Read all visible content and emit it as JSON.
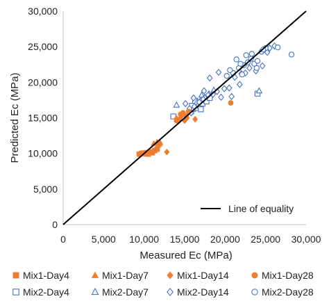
{
  "chart_data": {
    "type": "scatter",
    "xlabel": "Measured Ec (MPa)",
    "ylabel": "Predicted Ec (MPa)",
    "xlim": [
      0,
      30000
    ],
    "ylim": [
      0,
      30000
    ],
    "x_ticks": [
      "0",
      "5,000",
      "10,000",
      "15,000",
      "20,000",
      "25,000",
      "30,000"
    ],
    "y_ticks": [
      "0",
      "5,000",
      "10,000",
      "15,000",
      "20,000",
      "25,000",
      "30,000"
    ],
    "grid": false,
    "legend_position": "bottom",
    "line_label": "Line of equality",
    "colors": {
      "mix1": "#ED7D31",
      "mix2": "#4472C4",
      "line": "#000000"
    },
    "series": [
      {
        "name": "Mix1-Day4",
        "marker": "square-filled",
        "points": [
          [
            9400,
            9900
          ],
          [
            9700,
            10000
          ],
          [
            10000,
            10000
          ],
          [
            10300,
            10100
          ],
          [
            10500,
            9900
          ],
          [
            10800,
            10200
          ],
          [
            11000,
            10100
          ],
          [
            11300,
            10400
          ],
          [
            11600,
            10600
          ],
          [
            10200,
            9950
          ],
          [
            9900,
            10050
          ]
        ]
      },
      {
        "name": "Mix1-Day7",
        "marker": "triangle-filled",
        "points": [
          [
            11200,
            11400
          ],
          [
            11600,
            11600
          ],
          [
            11900,
            11300
          ],
          [
            11700,
            11100
          ],
          [
            12000,
            11500
          ]
        ]
      },
      {
        "name": "Mix1-Day14",
        "marker": "diamond-filled",
        "points": [
          [
            12800,
            10200
          ],
          [
            14000,
            14900
          ],
          [
            14600,
            15200
          ],
          [
            15000,
            14600
          ],
          [
            15300,
            15000
          ],
          [
            16300,
            14800
          ],
          [
            14300,
            14700
          ]
        ]
      },
      {
        "name": "Mix1-Day28",
        "marker": "circle-filled",
        "points": [
          [
            14500,
            15500
          ],
          [
            14800,
            15700
          ],
          [
            15500,
            15900
          ],
          [
            15200,
            15300
          ],
          [
            14000,
            14600
          ],
          [
            20700,
            17100
          ]
        ]
      },
      {
        "name": "Mix2-Day4",
        "marker": "square-open",
        "points": [
          [
            13600,
            15200
          ],
          [
            15800,
            15900
          ],
          [
            16400,
            16400
          ],
          [
            16900,
            16700
          ],
          [
            17200,
            17000
          ],
          [
            17700,
            17300
          ],
          [
            18100,
            17800
          ],
          [
            15900,
            16700
          ],
          [
            16300,
            17400
          ],
          [
            17000,
            16200
          ],
          [
            24000,
            18400
          ]
        ]
      },
      {
        "name": "Mix2-Day7",
        "marker": "triangle-open",
        "points": [
          [
            14000,
            16800
          ],
          [
            16000,
            16200
          ],
          [
            16500,
            17200
          ],
          [
            17000,
            17500
          ],
          [
            17500,
            17900
          ],
          [
            18000,
            18400
          ],
          [
            18600,
            18900
          ],
          [
            24200,
            18800
          ],
          [
            17100,
            18200
          ],
          [
            16700,
            16900
          ]
        ]
      },
      {
        "name": "Mix2-Day14",
        "marker": "diamond-open",
        "points": [
          [
            15100,
            17000
          ],
          [
            15800,
            15700
          ],
          [
            16200,
            16600
          ],
          [
            16800,
            17200
          ],
          [
            17300,
            17600
          ],
          [
            17900,
            18200
          ],
          [
            18500,
            18300
          ],
          [
            19000,
            18700
          ],
          [
            19500,
            17900
          ],
          [
            20500,
            19200
          ],
          [
            21800,
            19700
          ],
          [
            22500,
            21300
          ],
          [
            23000,
            22000
          ],
          [
            23800,
            21600
          ],
          [
            24600,
            22300
          ],
          [
            22000,
            21200
          ],
          [
            21200,
            20700
          ],
          [
            20800,
            18000
          ],
          [
            18100,
            20600
          ],
          [
            19200,
            21400
          ],
          [
            17400,
            18800
          ],
          [
            16100,
            17800
          ],
          [
            15600,
            16300
          ],
          [
            19900,
            19100
          ],
          [
            25200,
            24200
          ],
          [
            26100,
            25100
          ],
          [
            25500,
            24800
          ]
        ]
      },
      {
        "name": "Mix2-Day28",
        "marker": "circle-open",
        "points": [
          [
            20200,
            20900
          ],
          [
            21000,
            21300
          ],
          [
            21700,
            22000
          ],
          [
            22300,
            22400
          ],
          [
            22800,
            22800
          ],
          [
            23200,
            23300
          ],
          [
            23600,
            22600
          ],
          [
            24000,
            23000
          ],
          [
            24500,
            24300
          ],
          [
            25000,
            24800
          ],
          [
            26500,
            24900
          ],
          [
            28200,
            23900
          ],
          [
            21400,
            23200
          ],
          [
            22600,
            23800
          ],
          [
            23900,
            22000
          ],
          [
            24700,
            24600
          ],
          [
            20600,
            21700
          ],
          [
            22100,
            21100
          ],
          [
            23300,
            24000
          ],
          [
            21900,
            22600
          ]
        ]
      }
    ]
  }
}
